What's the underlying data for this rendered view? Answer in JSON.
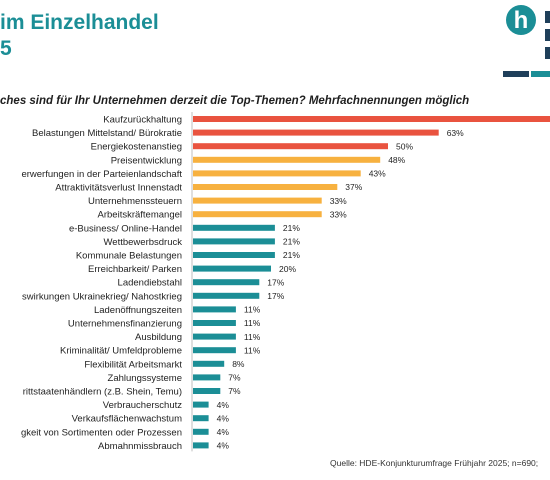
{
  "header": {
    "title": "im Einzelhandel",
    "subtitle": "5",
    "question": "ches sind für Ihr Unternehmen derzeit die Top-Themen? Mehrfachnennungen möglich"
  },
  "logo": {
    "icon": "hde-logo-icon",
    "letter": "h",
    "colors": [
      "#1b8e96",
      "#1f3f5a"
    ]
  },
  "colors": {
    "red": "#e9533f",
    "orange": "#f7b13f",
    "teal": "#1b8e96",
    "title": "#1b8e96"
  },
  "chart_data": {
    "type": "bar",
    "orientation": "horizontal",
    "categories": [
      "Kaufzurückhaltung",
      "Belastungen Mittelstand/ Bürokratie",
      "Energiekostenanstieg",
      "Preisentwicklung",
      "erwerfungen in der Parteienlandschaft",
      "Attraktivitätsverlust Innenstadt",
      "Unternehmenssteuern",
      "Arbeitskräftemangel",
      "e-Business/ Online-Handel",
      "Wettbewerbsdruck",
      "Kommunale Belastungen",
      "Erreichbarkeit/ Parken",
      "Ladendiebstahl",
      "swirkungen Ukrainekrieg/ Nahostkrieg",
      "Ladenöffnungszeiten",
      "Unternehmensfinanzierung",
      "Ausbildung",
      "Kriminalität/ Umfeldprobleme",
      "Flexibilität Arbeitsmarkt",
      "Zahlungssysteme",
      "rittstaatenhändlern (z.B. Shein, Temu)",
      "Verbraucherschutz",
      "Verkaufsflächenwachstum",
      "gkeit von Sortimenten oder Prozessen",
      "Abmahnmissbrauch"
    ],
    "values": [
      null,
      63,
      50,
      48,
      43,
      37,
      33,
      33,
      21,
      21,
      21,
      20,
      17,
      17,
      11,
      11,
      11,
      11,
      8,
      7,
      7,
      4,
      4,
      4,
      4
    ],
    "value_labels": [
      "",
      "63%",
      "50%",
      "48%",
      "43%",
      "37%",
      "33%",
      "33%",
      "21%",
      "21%",
      "21%",
      "20%",
      "17%",
      "17%",
      "11%",
      "11%",
      "11%",
      "11%",
      "8%",
      "7%",
      "7%",
      "4%",
      "4%",
      "4%",
      "4%"
    ],
    "groups": [
      "red",
      "red",
      "red",
      "orange",
      "orange",
      "orange",
      "orange",
      "orange",
      "teal",
      "teal",
      "teal",
      "teal",
      "teal",
      "teal",
      "teal",
      "teal",
      "teal",
      "teal",
      "teal",
      "teal",
      "teal",
      "teal",
      "teal",
      "teal",
      "teal"
    ],
    "xlim": [
      0,
      70
    ],
    "grid": false,
    "legend": false
  },
  "footer": {
    "source": "Quelle: HDE-Konjunkturumfrage Frühjahr 2025; n=690;"
  }
}
